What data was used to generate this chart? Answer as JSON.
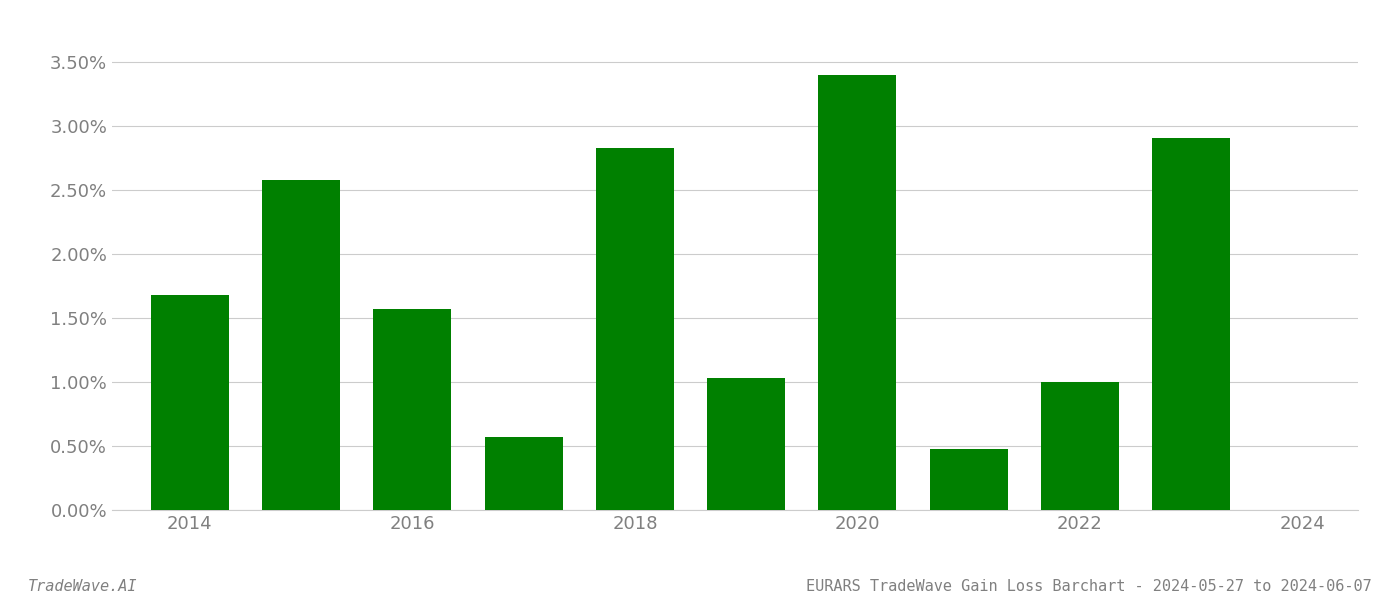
{
  "years": [
    2014,
    2015,
    2016,
    2017,
    2018,
    2019,
    2020,
    2021,
    2022,
    2023
  ],
  "values": [
    0.0168,
    0.0258,
    0.0157,
    0.0057,
    0.0283,
    0.0103,
    0.034,
    0.0048,
    0.01,
    0.0291
  ],
  "bar_color": "#008000",
  "background_color": "#ffffff",
  "ylim": [
    0,
    0.0375
  ],
  "yticks": [
    0.0,
    0.005,
    0.01,
    0.015,
    0.02,
    0.025,
    0.03,
    0.035
  ],
  "ytick_labels": [
    "0.00%",
    "0.50%",
    "1.00%",
    "1.50%",
    "2.00%",
    "2.50%",
    "3.00%",
    "3.50%"
  ],
  "xticks": [
    2014,
    2016,
    2018,
    2020,
    2022,
    2024
  ],
  "xlim": [
    2013.3,
    2024.5
  ],
  "bar_width": 0.7,
  "grid_color": "#cccccc",
  "text_color": "#808080",
  "footer_left": "TradeWave.AI",
  "footer_right": "EURARS TradeWave Gain Loss Barchart - 2024-05-27 to 2024-06-07",
  "footer_fontsize": 11,
  "tick_fontsize": 13
}
